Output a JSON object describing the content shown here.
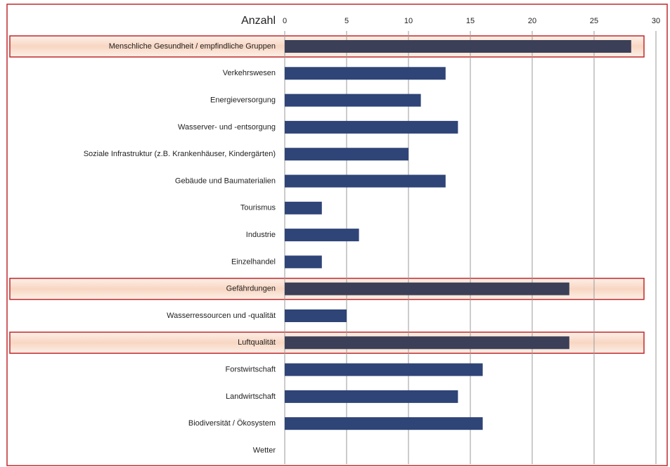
{
  "chart_data": {
    "type": "barh",
    "x_label": "Anzahl",
    "categories": [
      "Menschliche Gesundheit / empfindliche Gruppen",
      "Verkehrswesen",
      "Energieversorgung",
      "Wasserver- und -entsorgung",
      "Soziale Infrastruktur (z.B. Krankenhäuser, Kindergärten)",
      "Gebäude und Baumaterialien",
      "Tourismus",
      "Industrie",
      "Einzelhandel",
      "Gefährdungen",
      "Wasserressourcen und -qualität",
      "Luftqualität",
      "Forstwirtschaft",
      "Landwirtschaft",
      "Biodiversität / Ökosystem",
      "Wetter"
    ],
    "values": [
      28,
      13,
      11,
      14,
      10,
      13,
      3,
      6,
      3,
      23,
      5,
      23,
      16,
      14,
      16,
      0
    ],
    "color": "#2f4477",
    "highlight_color": "#3b3f57",
    "highlighted": [
      0,
      9,
      11
    ],
    "xlim": [
      0,
      30
    ],
    "xticks": [
      0,
      5,
      10,
      15,
      20,
      25,
      30
    ],
    "grid": true
  }
}
